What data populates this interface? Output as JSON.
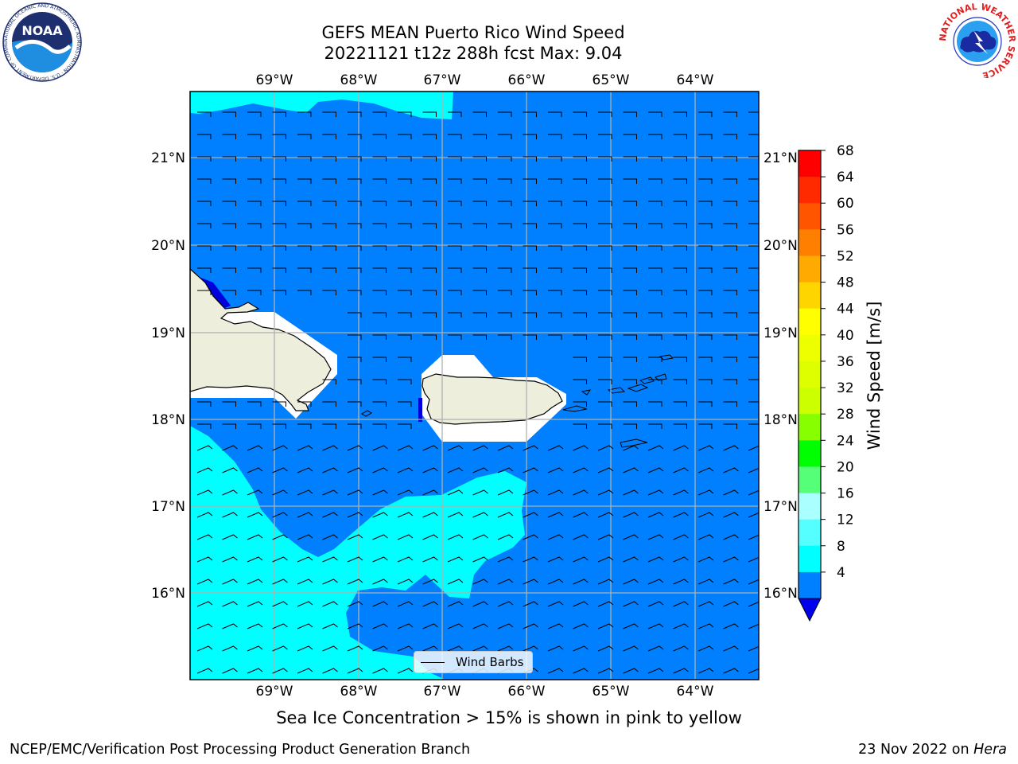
{
  "title": {
    "line1": "GEFS MEAN Puerto Rico Wind Speed",
    "line2": "20221121 t12z 288h fcst   Max: 9.04"
  },
  "map": {
    "lon_labels": [
      "69°W",
      "68°W",
      "67°W",
      "66°W",
      "65°W",
      "64°W"
    ],
    "lat_labels": [
      "21°N",
      "20°N",
      "19°N",
      "18°N",
      "17°N",
      "16°N"
    ],
    "colors": {
      "ocean_4_8": "#0080ff",
      "ocean_8_12": "#00ffff",
      "land": "#eeeedd",
      "grid": "#b0b0b0"
    }
  },
  "legend": {
    "label": "Wind Barbs"
  },
  "colorbar": {
    "label": "Wind Speed [m/s]",
    "ticks": [
      "68",
      "64",
      "60",
      "56",
      "52",
      "48",
      "44",
      "40",
      "36",
      "32",
      "28",
      "24",
      "20",
      "16",
      "12",
      "8",
      "4"
    ],
    "colors": [
      "#ff0000",
      "#ff2a00",
      "#ff5500",
      "#ff8000",
      "#ffaa00",
      "#ffd500",
      "#ffff00",
      "#eeff00",
      "#ddff00",
      "#ccff00",
      "#88ff00",
      "#00ff00",
      "#55ff77",
      "#aaffff",
      "#55ffff",
      "#00ffff",
      "#0080ff"
    ],
    "under_color": "#0000ee"
  },
  "logos": {
    "noaa": {
      "text": "NOAA",
      "ring_text": "NATIONAL OCEANIC AND ATMOSPHERIC ADMINISTRATION · U.S. DEPARTMENT OF COMMERCE"
    },
    "nws": {
      "ring_text": "NATIONAL WEATHER SERVICE"
    }
  },
  "footer": {
    "note": "Sea Ice Concentration > 15% is shown in pink to yellow",
    "left": "NCEP/EMC/Verification Post Processing Product Generation Branch",
    "date": "23 Nov 2022 on ",
    "machine": "Hera"
  }
}
